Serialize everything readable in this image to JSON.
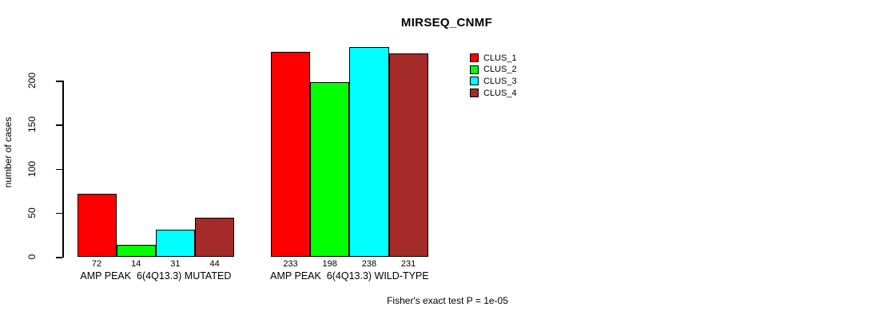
{
  "title": "MIRSEQ_CNMF",
  "y_axis": {
    "label": "number of cases",
    "ticks": [
      0,
      50,
      100,
      150,
      200
    ]
  },
  "footer": "Fisher's exact test P = 1e-05",
  "legend": {
    "items": [
      {
        "label": "CLUS_1",
        "color": "#FF0000"
      },
      {
        "label": "CLUS_2",
        "color": "#00FF00"
      },
      {
        "label": "CLUS_3",
        "color": "#00FFFF"
      },
      {
        "label": "CLUS_4",
        "color": "#A52A2A"
      }
    ]
  },
  "chart_data": {
    "type": "bar",
    "title": "MIRSEQ_CNMF",
    "ylabel": "number of cases",
    "categories": [
      "AMP PEAK  6(4Q13.3) MUTATED",
      "AMP PEAK  6(4Q13.3) WILD-TYPE"
    ],
    "series": [
      {
        "name": "CLUS_1",
        "color": "#FF0000",
        "values": [
          72,
          233
        ]
      },
      {
        "name": "CLUS_2",
        "color": "#00FF00",
        "values": [
          14,
          198
        ]
      },
      {
        "name": "CLUS_3",
        "color": "#00FFFF",
        "values": [
          31,
          238
        ]
      },
      {
        "name": "CLUS_4",
        "color": "#A52A2A",
        "values": [
          44,
          231
        ]
      }
    ],
    "bar_value_labels": [
      [
        72,
        14,
        31,
        44
      ],
      [
        233,
        198,
        238,
        231
      ]
    ],
    "yticks": [
      0,
      50,
      100,
      150,
      200
    ],
    "ylim": [
      0,
      240
    ],
    "grid": false,
    "legend_position": "top-right",
    "annotation": "Fisher's exact test P = 1e-05"
  }
}
